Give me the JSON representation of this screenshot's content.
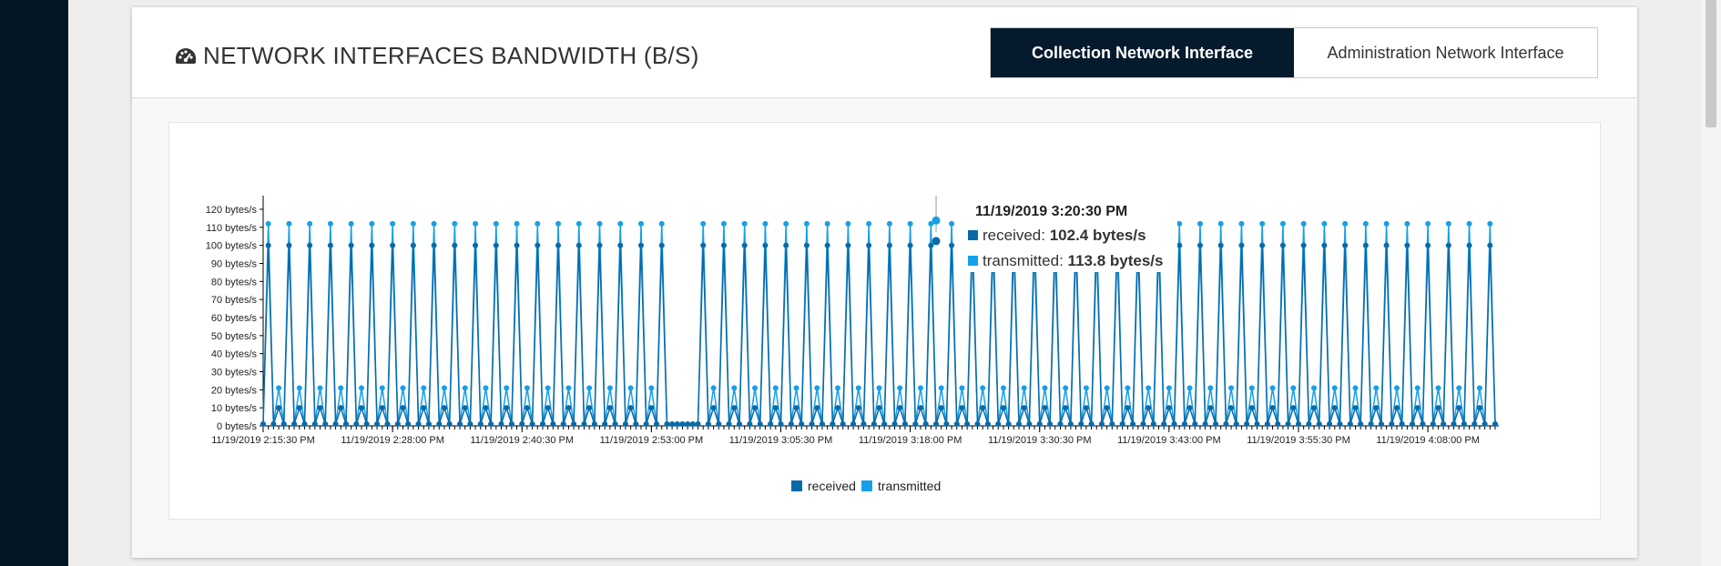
{
  "header": {
    "title": "NETWORK INTERFACES BANDWIDTH (B/S)",
    "title_icon": "dashboard-gauge-icon",
    "tabs": [
      {
        "label": "Collection Network Interface",
        "active": true
      },
      {
        "label": "Administration Network Interface",
        "active": false
      }
    ]
  },
  "tooltip": {
    "time": "11/19/2019 3:20:30 PM",
    "rows": [
      {
        "label": "received:",
        "value": "102.4 bytes/s",
        "color": "#0a6aa8"
      },
      {
        "label": "transmitted:",
        "value": "113.8 bytes/s",
        "color": "#16a0e8"
      }
    ]
  },
  "colors": {
    "received": "#0a6aa8",
    "transmitted": "#16a0e8",
    "header_active_bg": "#051a2c",
    "left_rail": "#031727"
  },
  "chart_data": {
    "type": "line",
    "xlabel": "",
    "ylabel": "",
    "ylim": [
      0,
      120
    ],
    "y_ticks": [
      "0 bytes/s",
      "10 bytes/s",
      "20 bytes/s",
      "30 bytes/s",
      "40 bytes/s",
      "50 bytes/s",
      "60 bytes/s",
      "70 bytes/s",
      "80 bytes/s",
      "90 bytes/s",
      "100 bytes/s",
      "110 bytes/s",
      "120 bytes/s"
    ],
    "x_ticks": [
      "11/19/2019 2:15:30 PM",
      "11/19/2019 2:28:00 PM",
      "11/19/2019 2:40:30 PM",
      "11/19/2019 2:53:00 PM",
      "11/19/2019 3:05:30 PM",
      "11/19/2019 3:18:00 PM",
      "11/19/2019 3:30:30 PM",
      "11/19/2019 3:43:00 PM",
      "11/19/2019 3:55:30 PM",
      "11/19/2019 4:08:00 PM"
    ],
    "legend": [
      "received",
      "transmitted"
    ],
    "legend_position": "bottom-center",
    "time_start": "11/19/2019 2:15:30 PM",
    "time_end": "11/19/2019 4:14:30 PM",
    "sample_interval_seconds": 30,
    "cycle_samples": 4,
    "gap_start": "11/19/2019 2:54:30 PM",
    "gap_end": "11/19/2019 2:57:30 PM",
    "series": [
      {
        "name": "received",
        "cycle_values": [
          1,
          100,
          1,
          10
        ],
        "gap_value": 1
      },
      {
        "name": "transmitted",
        "cycle_values": [
          1,
          112,
          1,
          21
        ],
        "gap_value": 1
      }
    ],
    "highlighted_point": {
      "time": "11/19/2019 3:20:30 PM",
      "received": 102.4,
      "transmitted": 113.8
    }
  }
}
